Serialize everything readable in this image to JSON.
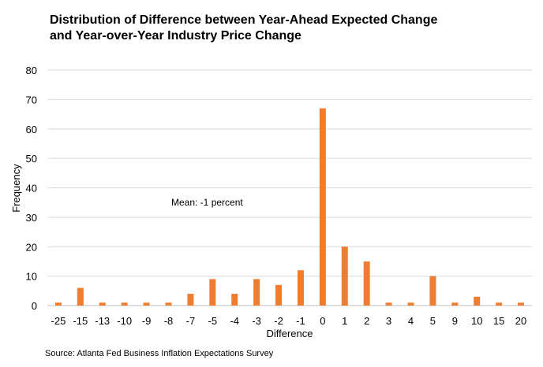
{
  "chart_data": {
    "type": "bar",
    "title_line1": "Distribution of Difference between Year-Ahead Expected Change",
    "title_line2": "and Year-over-Year Industry Price Change",
    "xlabel": "Difference",
    "ylabel": "Frequency",
    "categories": [
      "-25",
      "-15",
      "-13",
      "-10",
      "-9",
      "-8",
      "-7",
      "-5",
      "-4",
      "-3",
      "-2",
      "-1",
      "0",
      "1",
      "2",
      "3",
      "4",
      "5",
      "9",
      "10",
      "15",
      "20"
    ],
    "values": [
      1,
      6,
      1,
      1,
      1,
      1,
      4,
      9,
      4,
      9,
      7,
      12,
      67,
      20,
      15,
      1,
      1,
      10,
      1,
      3,
      1,
      1
    ],
    "ylim": [
      0,
      80
    ],
    "yticks": [
      0,
      10,
      20,
      30,
      40,
      50,
      60,
      70,
      80
    ],
    "grid": true,
    "bar_color": "#ED7D31",
    "grid_color": "#D9D9D9",
    "annotation": "Mean: -1 percent",
    "source": "Source: Atlanta Fed Business Inflation Expectations Survey"
  }
}
